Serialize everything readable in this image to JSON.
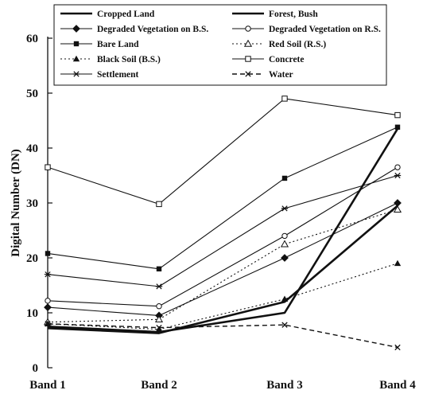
{
  "chart_data": {
    "type": "line",
    "title": "",
    "xlabel": "",
    "ylabel": "Digital Number (DN)",
    "categories": [
      "Band 1",
      "Band 2",
      "Band 3",
      "Band 4"
    ],
    "ylim": [
      0,
      60
    ],
    "yticks": [
      0,
      10,
      20,
      30,
      40,
      50,
      60
    ],
    "grid": false,
    "legend_position": "top",
    "series": [
      {
        "name": "Cropped Land",
        "values": [
          7.5,
          6.5,
          10,
          43.5
        ],
        "style": "thick-solid",
        "marker": "none"
      },
      {
        "name": "Forest, Bush",
        "values": [
          7.2,
          6.3,
          12,
          29.5
        ],
        "style": "thick-solid",
        "marker": "none"
      },
      {
        "name": "Degraded Vegetation on B.S.",
        "values": [
          11,
          9.5,
          20,
          30
        ],
        "style": "solid",
        "marker": "diamond-filled"
      },
      {
        "name": "Degraded Vegetation on R.S.",
        "values": [
          12.2,
          11.2,
          24,
          36.5
        ],
        "style": "solid",
        "marker": "circle-open"
      },
      {
        "name": "Bare Land",
        "values": [
          20.8,
          18,
          34.5,
          43.8
        ],
        "style": "solid",
        "marker": "square-filled"
      },
      {
        "name": "Red Soil (R.S.)",
        "values": [
          8.3,
          8.8,
          22.5,
          28.8
        ],
        "style": "dotted",
        "marker": "triangle-open"
      },
      {
        "name": "Black Soil (B.S.)",
        "values": [
          8,
          7,
          12.5,
          19
        ],
        "style": "dotted",
        "marker": "triangle-filled"
      },
      {
        "name": "Concrete",
        "values": [
          36.5,
          29.8,
          49,
          46
        ],
        "style": "solid",
        "marker": "square-open"
      },
      {
        "name": "Settlement",
        "values": [
          17,
          14.8,
          29,
          35
        ],
        "style": "solid",
        "marker": "asterisk"
      },
      {
        "name": "Water",
        "values": [
          8,
          7.3,
          7.8,
          3.7
        ],
        "style": "dashed",
        "marker": "x"
      }
    ]
  }
}
